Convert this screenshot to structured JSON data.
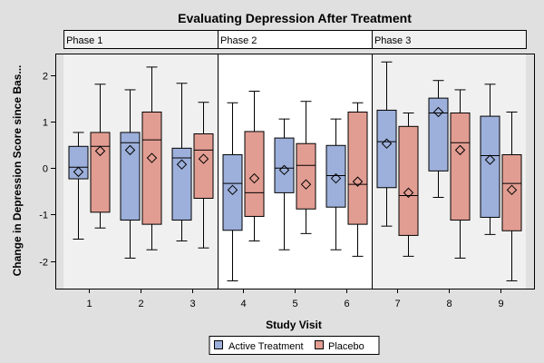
{
  "chart_data": {
    "type": "box",
    "title": "Evaluating Depression After Treatment",
    "xlabel": "Study Visit",
    "ylabel": "Change in Depression Score since Bas...",
    "xlim": [
      0.34,
      9.66
    ],
    "ylim": [
      -2.6,
      2.55
    ],
    "x_ticks": [
      "1",
      "2",
      "3",
      "4",
      "5",
      "6",
      "7",
      "8",
      "9"
    ],
    "y_ticks": [
      "-2",
      "-1",
      "0",
      "1",
      "2"
    ],
    "y_tick_values": [
      -2,
      -1,
      0,
      1,
      2
    ],
    "grid": false,
    "phases": [
      {
        "label": "Phase 1",
        "visits": [
          1,
          3
        ]
      },
      {
        "label": "Phase 2",
        "visits": [
          4,
          6
        ]
      },
      {
        "label": "Phase 3",
        "visits": [
          7,
          9
        ]
      }
    ],
    "colors": {
      "Active Treatment": "#9db0db",
      "Placebo": "#e29d92",
      "wall_shaded": "#f0f0f0",
      "wall_highlight": "#ffffff",
      "background": "#e0e0e0"
    },
    "legend": {
      "position": "bottom",
      "entries": [
        "Active Treatment",
        "Placebo"
      ]
    },
    "series": [
      {
        "name": "Active Treatment",
        "boxes": [
          {
            "visit": 1,
            "min": -1.53,
            "q1": -0.23,
            "median": 0.02,
            "q3": 0.47,
            "max": 0.77,
            "mean": -0.08
          },
          {
            "visit": 2,
            "min": -1.94,
            "q1": -1.12,
            "median": 0.55,
            "q3": 0.77,
            "max": 1.69,
            "mean": 0.39
          },
          {
            "visit": 3,
            "min": -1.57,
            "q1": -1.12,
            "median": 0.22,
            "q3": 0.43,
            "max": 1.83,
            "mean": 0.08
          },
          {
            "visit": 4,
            "min": -2.43,
            "q1": -1.34,
            "median": -0.33,
            "q3": 0.29,
            "max": 1.41,
            "mean": -0.47
          },
          {
            "visit": 5,
            "min": -1.76,
            "q1": -0.53,
            "median": 0.0,
            "q3": 0.65,
            "max": 1.06,
            "mean": -0.04
          },
          {
            "visit": 6,
            "min": -1.76,
            "q1": -0.84,
            "median": -0.16,
            "q3": 0.49,
            "max": 1.06,
            "mean": -0.22
          },
          {
            "visit": 7,
            "min": -1.25,
            "q1": -0.42,
            "median": 0.57,
            "q3": 1.25,
            "max": 2.29,
            "mean": 0.53
          },
          {
            "visit": 8,
            "min": -0.63,
            "q1": -0.06,
            "median": 1.19,
            "q3": 1.51,
            "max": 1.89,
            "mean": 1.21
          },
          {
            "visit": 9,
            "min": -1.43,
            "q1": -1.06,
            "median": 0.27,
            "q3": 1.12,
            "max": 1.81,
            "mean": 0.18
          }
        ]
      },
      {
        "name": "Placebo",
        "boxes": [
          {
            "visit": 1,
            "min": -1.29,
            "q1": -0.95,
            "median": 0.47,
            "q3": 0.77,
            "max": 1.81,
            "mean": 0.37
          },
          {
            "visit": 2,
            "min": -1.76,
            "q1": -1.21,
            "median": 0.61,
            "q3": 1.21,
            "max": 2.18,
            "mean": 0.22
          },
          {
            "visit": 3,
            "min": -1.72,
            "q1": -0.65,
            "median": 0.39,
            "q3": 0.74,
            "max": 1.42,
            "mean": 0.2
          },
          {
            "visit": 4,
            "min": -1.57,
            "q1": -1.04,
            "median": -0.53,
            "q3": 0.79,
            "max": 1.66,
            "mean": -0.22
          },
          {
            "visit": 5,
            "min": -1.41,
            "q1": -0.88,
            "median": 0.06,
            "q3": 0.53,
            "max": 1.44,
            "mean": -0.35
          },
          {
            "visit": 6,
            "min": -1.9,
            "q1": -1.21,
            "median": -0.35,
            "q3": 1.21,
            "max": 1.41,
            "mean": -0.29
          },
          {
            "visit": 7,
            "min": -1.9,
            "q1": -1.45,
            "median": -0.59,
            "q3": 0.9,
            "max": 1.19,
            "mean": -0.53
          },
          {
            "visit": 8,
            "min": -1.94,
            "q1": -1.12,
            "median": 0.55,
            "q3": 1.19,
            "max": 1.69,
            "mean": 0.39
          },
          {
            "visit": 9,
            "min": -2.43,
            "q1": -1.35,
            "median": -0.33,
            "q3": 0.29,
            "max": 1.21,
            "mean": -0.47
          }
        ]
      }
    ]
  }
}
